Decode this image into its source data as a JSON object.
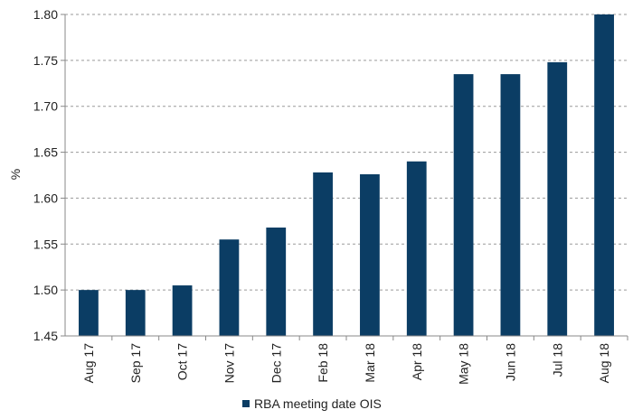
{
  "chart_data": {
    "type": "bar",
    "ylabel": "%",
    "ylim": [
      1.45,
      1.8
    ],
    "yticks": [
      1.45,
      1.5,
      1.55,
      1.6,
      1.65,
      1.7,
      1.75,
      1.8
    ],
    "grid": true,
    "legend_position": "bottom",
    "categories": [
      "Aug 17",
      "Sep 17",
      "Oct 17",
      "Nov 17",
      "Dec 17",
      "Feb 18",
      "Mar 18",
      "Apr 18",
      "May 18",
      "Jun 18",
      "Jul 18",
      "Aug 18"
    ],
    "series": [
      {
        "name": "RBA meeting date OIS",
        "color": "#0b3d64",
        "values": [
          1.5,
          1.5,
          1.505,
          1.555,
          1.568,
          1.628,
          1.626,
          1.64,
          1.735,
          1.735,
          1.748,
          1.8
        ]
      }
    ]
  }
}
